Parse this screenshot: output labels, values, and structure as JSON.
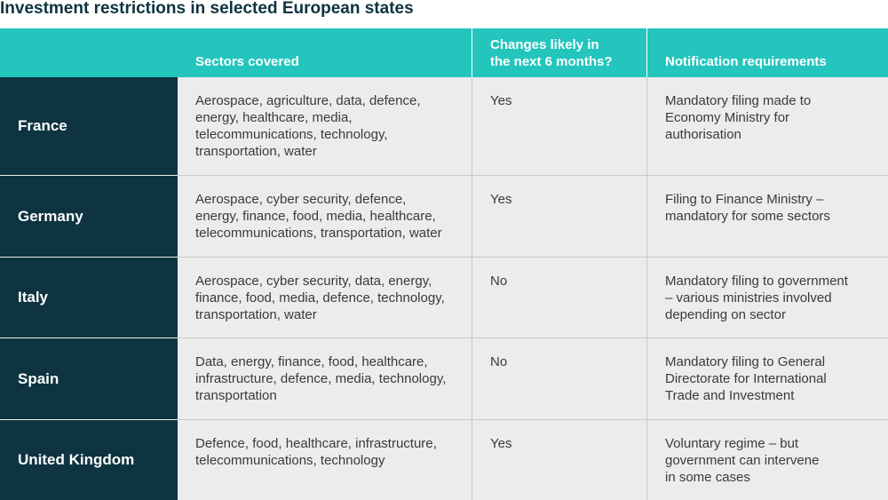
{
  "title": "Investment restrictions in selected European states",
  "headers": {
    "country": "",
    "sectors": "Sectors covered",
    "changes_line1": "Changes likely in",
    "changes_line2": "the next 6 months?",
    "notification": "Notification requirements"
  },
  "rows": [
    {
      "country": "France",
      "sectors": [
        "Aerospace, agriculture, data, defence,",
        "energy, healthcare, media,",
        "telecommunications, technology,",
        "transportation, water"
      ],
      "changes": "Yes",
      "notification": [
        "Mandatory filing made to",
        "Economy Ministry for",
        "authorisation"
      ]
    },
    {
      "country": "Germany",
      "sectors": [
        "Aerospace, cyber security, defence,",
        "energy, finance, food, media, healthcare,",
        "telecommunications, transportation, water"
      ],
      "changes": "Yes",
      "notification": [
        "Filing to Finance Ministry –",
        "mandatory for some sectors"
      ]
    },
    {
      "country": "Italy",
      "sectors": [
        "Aerospace, cyber security, data, energy,",
        "finance, food, media, defence, technology,",
        "transportation, water"
      ],
      "changes": "No",
      "notification": [
        "Mandatory filing to government",
        "– various ministries involved",
        "depending on sector"
      ]
    },
    {
      "country": "Spain",
      "sectors": [
        "Data, energy, finance, food, healthcare,",
        "infrastructure, defence, media, technology,",
        "transportation"
      ],
      "changes": "No",
      "notification": [
        "Mandatory filing to General",
        "Directorate for International",
        "Trade and Investment"
      ]
    },
    {
      "country": "United Kingdom",
      "sectors": [
        "Defence, food, healthcare, infrastructure,",
        "telecommunications, technology"
      ],
      "changes": "Yes",
      "notification": [
        "Voluntary regime – but",
        "government can intervene",
        "in some cases"
      ]
    }
  ]
}
